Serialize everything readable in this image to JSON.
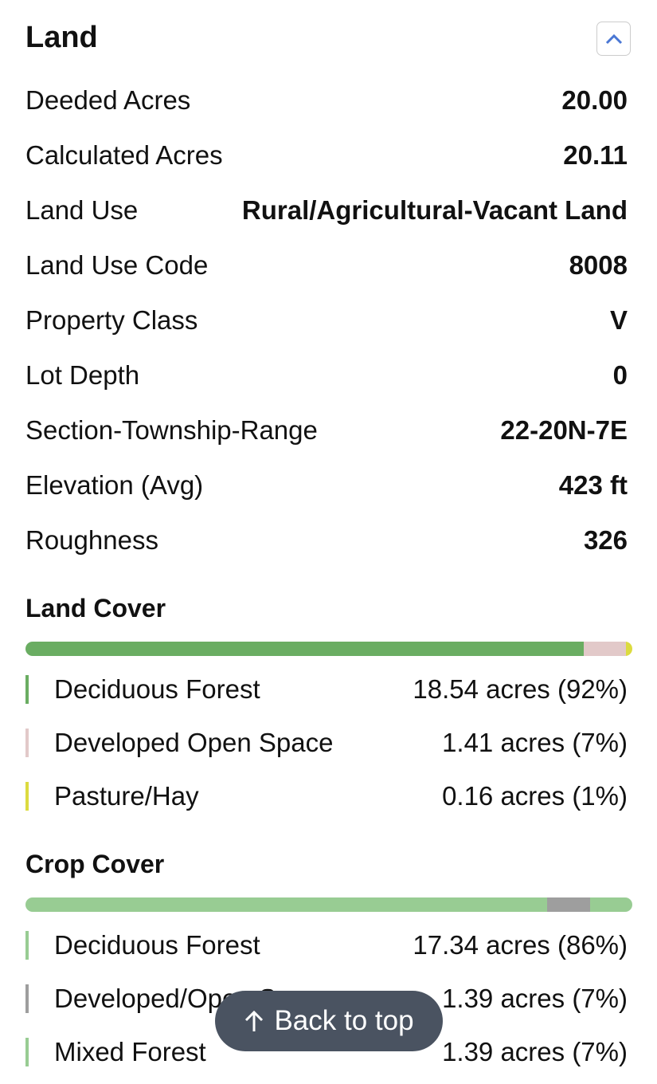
{
  "section_title": "Land",
  "collapse_icon": "chevron-up-icon",
  "accent_color": "#4a77d4",
  "fields": [
    {
      "label": "Deeded Acres",
      "value": "20.00"
    },
    {
      "label": "Calculated Acres",
      "value": "20.11"
    },
    {
      "label": "Land Use",
      "value": "Rural/Agricultural-Vacant Land"
    },
    {
      "label": "Land Use Code",
      "value": "8008"
    },
    {
      "label": "Property Class",
      "value": "V"
    },
    {
      "label": "Lot Depth",
      "value": "0"
    },
    {
      "label": "Section-Township-Range",
      "value": "22-20N-7E"
    },
    {
      "label": "Elevation (Avg)",
      "value": "423 ft"
    },
    {
      "label": "Roughness",
      "value": "326"
    }
  ],
  "land_cover": {
    "title": "Land Cover",
    "items": [
      {
        "name": "Deciduous Forest",
        "value": "18.54 acres (92%)",
        "percent": 92,
        "color": "#6aad62"
      },
      {
        "name": "Developed Open Space",
        "value": "1.41 acres (7%)",
        "percent": 7,
        "color": "#e2c9c9"
      },
      {
        "name": "Pasture/Hay",
        "value": "0.16 acres (1%)",
        "percent": 1,
        "color": "#dcdb3f"
      }
    ]
  },
  "crop_cover": {
    "title": "Crop Cover",
    "items": [
      {
        "name": "Deciduous Forest",
        "value": "17.34 acres (86%)",
        "percent": 86,
        "color": "#98cc93"
      },
      {
        "name": "Developed/Open Space",
        "value": "1.39 acres (7%)",
        "percent": 7,
        "color": "#9e9e9e"
      },
      {
        "name": "Mixed Forest",
        "value": "1.39 acres (7%)",
        "percent": 7,
        "color": "#98cc93"
      }
    ]
  },
  "back_to_top": {
    "label": "Back to top",
    "icon": "arrow-up-icon"
  }
}
